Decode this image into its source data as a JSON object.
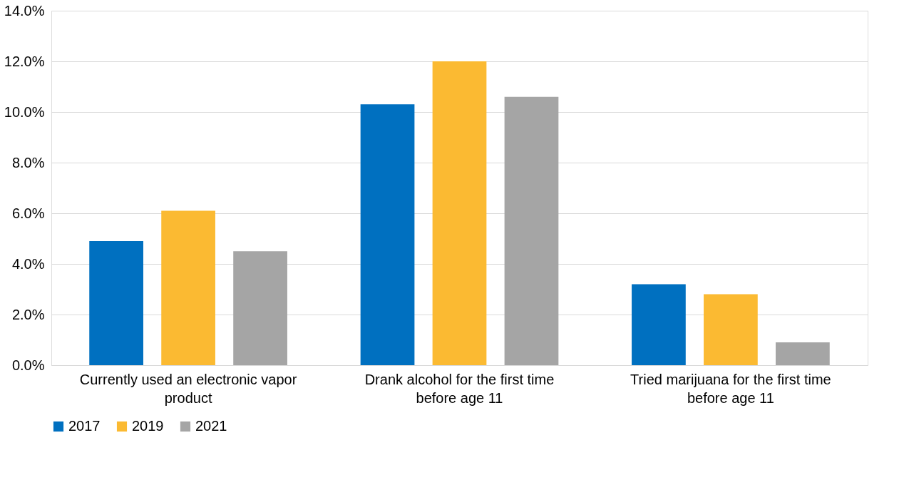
{
  "chart_data": {
    "type": "bar",
    "categories": [
      "Currently used an electronic vapor product",
      "Drank alcohol for the first time before age 11",
      "Tried marijuana for the first time before age 11"
    ],
    "series": [
      {
        "name": "2017",
        "color": "#0070c0",
        "values": [
          4.9,
          10.3,
          3.2
        ]
      },
      {
        "name": "2019",
        "color": "#fbba32",
        "values": [
          6.1,
          12.0,
          2.8
        ]
      },
      {
        "name": "2021",
        "color": "#a5a5a5",
        "values": [
          4.5,
          10.6,
          0.9
        ]
      }
    ],
    "ylim": [
      0,
      14
    ],
    "yticks": [
      {
        "value": 0,
        "label": "0.0%"
      },
      {
        "value": 2,
        "label": "2.0%"
      },
      {
        "value": 4,
        "label": "4.0%"
      },
      {
        "value": 6,
        "label": "6.0%"
      },
      {
        "value": 8,
        "label": "8.0%"
      },
      {
        "value": 10,
        "label": "10.0%"
      },
      {
        "value": 12,
        "label": "12.0%"
      },
      {
        "value": 14,
        "label": "14.0%"
      }
    ],
    "grid": "y",
    "legend": "bottom"
  }
}
